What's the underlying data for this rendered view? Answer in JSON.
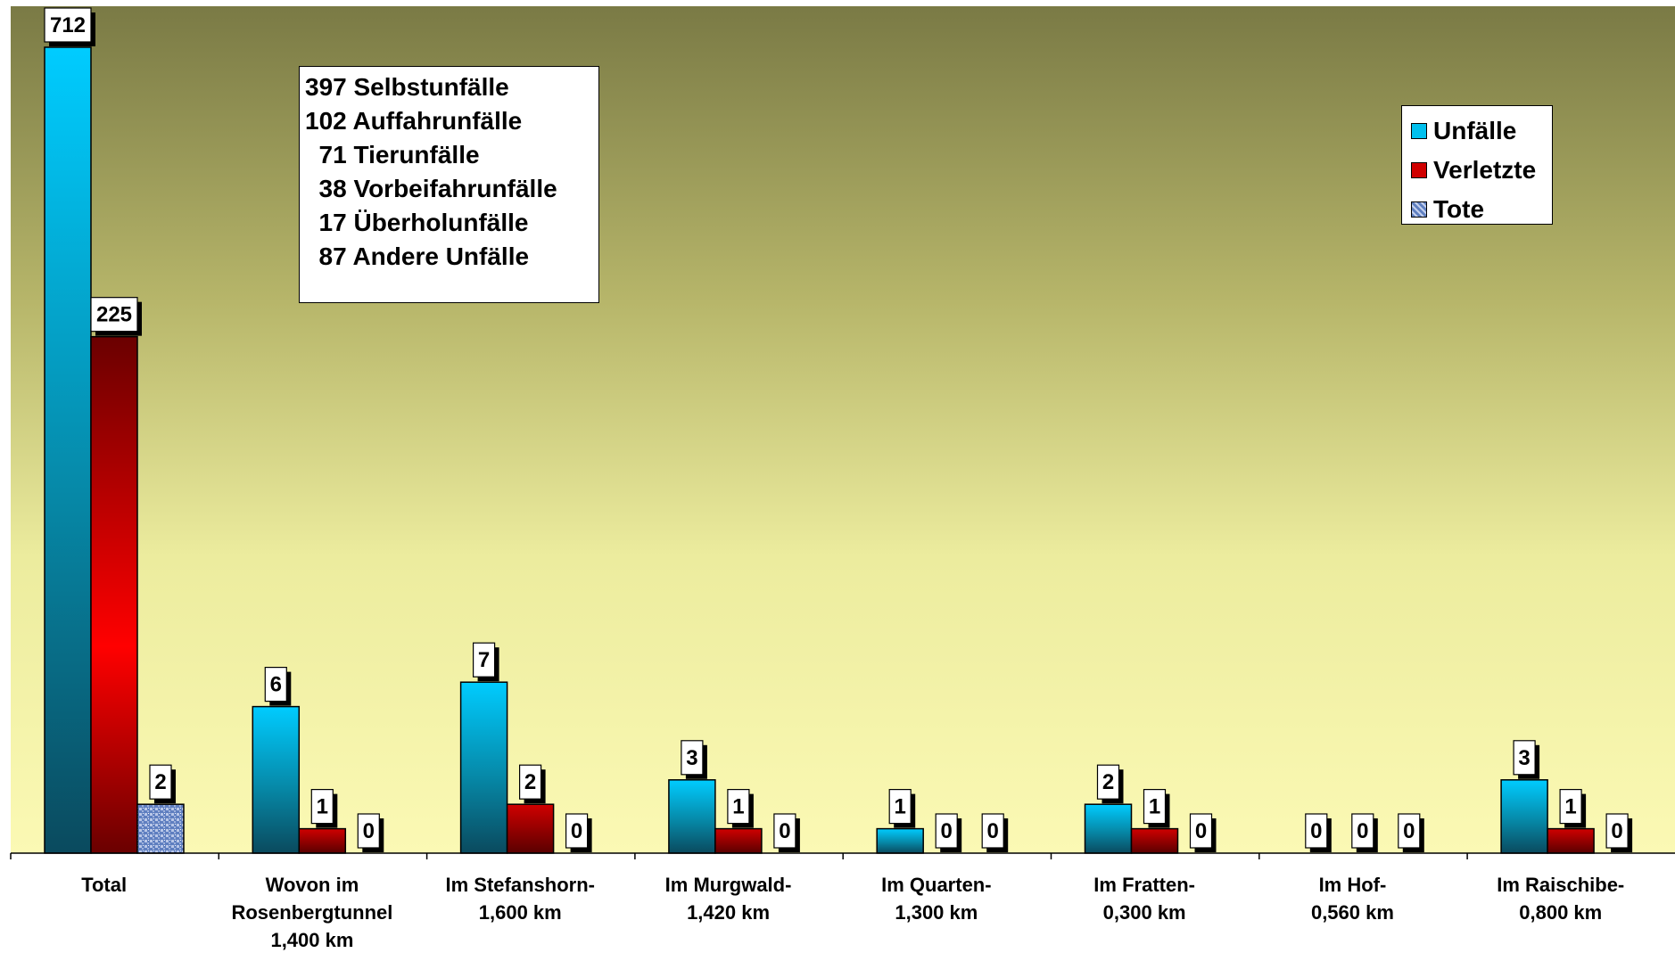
{
  "chart_data": {
    "type": "bar",
    "title": "",
    "xlabel": "",
    "ylabel": "",
    "categories": [
      [
        "Total"
      ],
      [
        "Wovon im",
        "Rosenbergtunnel",
        "1,400 km"
      ],
      [
        "Im Stefanshorn-",
        "1,600 km"
      ],
      [
        "Im Murgwald-",
        "1,420 km"
      ],
      [
        "Im Quarten-",
        "1,300 km"
      ],
      [
        "Im Fratten-",
        "0,300 km"
      ],
      [
        "Im Hof-",
        "0,560 km"
      ],
      [
        "Im Raischibe-",
        "0,800 km"
      ]
    ],
    "series": [
      {
        "name": "Unfälle",
        "values": [
          712,
          6,
          7,
          3,
          1,
          2,
          0,
          3
        ],
        "color": "#00c8f8"
      },
      {
        "name": "Verletzte",
        "values": [
          225,
          1,
          2,
          1,
          0,
          1,
          0,
          1
        ],
        "color": "#d00000"
      },
      {
        "name": "Tote",
        "values": [
          2,
          0,
          0,
          0,
          0,
          0,
          0,
          0
        ],
        "color": "#7a93c8"
      }
    ],
    "scale": "broken (custom, non-linear)",
    "grid": false,
    "legend_position": "top-right",
    "background": "gradient olive to pale yellow",
    "annotation_lines": [
      "397 Selbstunfälle",
      "102 Auffahrunfälle",
      "  71 Tierunfälle",
      "  38 Vorbeifahrunfälle",
      "  17 Überholunfälle",
      "  87 Andere Unfälle"
    ]
  },
  "legend": {
    "items": [
      {
        "label": "Unfälle",
        "icon": "cyan-square-icon"
      },
      {
        "label": "Verletzte",
        "icon": "red-square-icon"
      },
      {
        "label": "Tote",
        "icon": "blue-pattern-square-icon"
      }
    ]
  }
}
